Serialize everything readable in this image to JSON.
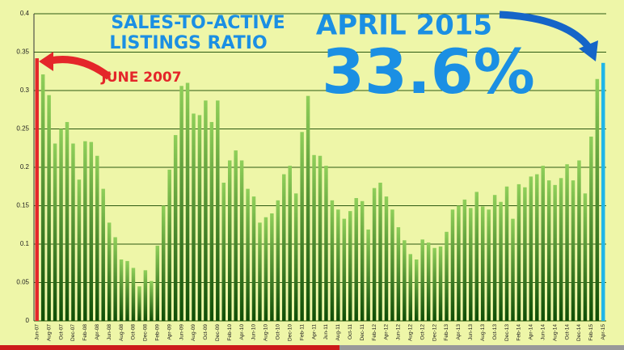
{
  "chart_data": {
    "type": "bar",
    "title": [
      "SALES-TO-ACTIVE",
      "LISTINGS RATIO"
    ],
    "annotations": {
      "end_label": "APRIL 2015",
      "end_value": "33.6%",
      "start_label": "JUNE 2007"
    },
    "categories": [
      "Jun-07",
      null,
      "Aug-07",
      null,
      "Oct-07",
      null,
      "Dec-07",
      null,
      "Feb-08",
      null,
      "Apr-08",
      null,
      "Jun-08",
      null,
      "Aug-08",
      null,
      "Oct-08",
      null,
      "Dec-08",
      null,
      "Feb-09",
      null,
      "Apr-09",
      null,
      "Jun-09",
      null,
      "Aug-09",
      null,
      "Oct-09",
      null,
      "Dec-09",
      null,
      "Feb-10",
      null,
      "Apr-10",
      null,
      "Jun-10",
      null,
      "Aug-10",
      null,
      "Oct-10",
      null,
      "Dec-10",
      null,
      "Feb-11",
      null,
      "Apr-11",
      null,
      "Jun-11",
      null,
      "Aug-11",
      null,
      "Oct-11",
      null,
      "Dec-11",
      null,
      "Feb-12",
      null,
      "Apr-12",
      null,
      "Jun-12",
      null,
      "Aug-12",
      null,
      "Oct-12",
      null,
      "Dec-12",
      null,
      "Feb-13",
      null,
      "Apr-13",
      null,
      "Jun-13",
      null,
      "Aug-13",
      null,
      "Oct-13",
      null,
      "Dec-13",
      null,
      "Feb-14",
      null,
      "Apr-14",
      null,
      "Jun-14",
      null,
      "Aug-14",
      null,
      "Oct-14",
      null,
      "Dec-14",
      null,
      "Feb-15",
      null,
      "Apr-15"
    ],
    "values": [
      0.342,
      0.321,
      0.294,
      0.231,
      0.25,
      0.259,
      0.231,
      0.184,
      0.234,
      0.233,
      0.215,
      0.172,
      0.128,
      0.109,
      0.08,
      0.078,
      0.069,
      0.045,
      0.066,
      0.052,
      0.098,
      0.15,
      0.197,
      0.242,
      0.306,
      0.31,
      0.27,
      0.268,
      0.287,
      0.259,
      0.287,
      0.18,
      0.209,
      0.222,
      0.209,
      0.172,
      0.162,
      0.128,
      0.135,
      0.14,
      0.157,
      0.191,
      0.202,
      0.166,
      0.246,
      0.293,
      0.216,
      0.215,
      0.202,
      0.157,
      0.145,
      0.133,
      0.143,
      0.16,
      0.156,
      0.119,
      0.173,
      0.18,
      0.162,
      0.145,
      0.122,
      0.105,
      0.087,
      0.08,
      0.106,
      0.102,
      0.095,
      0.097,
      0.116,
      0.145,
      0.15,
      0.158,
      0.147,
      0.168,
      0.149,
      0.145,
      0.164,
      0.155,
      0.175,
      0.133,
      0.178,
      0.174,
      0.188,
      0.191,
      0.202,
      0.183,
      0.177,
      0.186,
      0.204,
      0.183,
      0.209,
      0.166,
      0.24,
      0.315,
      0.336
    ],
    "color": "#2e7d12",
    "highlights": [
      {
        "index": 0,
        "color": "#e4262a"
      },
      {
        "index": 94,
        "color": "#1fb6e8"
      }
    ],
    "ylim": [
      0,
      0.4
    ],
    "yticks": [
      0,
      0.05,
      0.1,
      0.15,
      0.2,
      0.25,
      0.3,
      0.35,
      0.4
    ],
    "grid": true
  }
}
